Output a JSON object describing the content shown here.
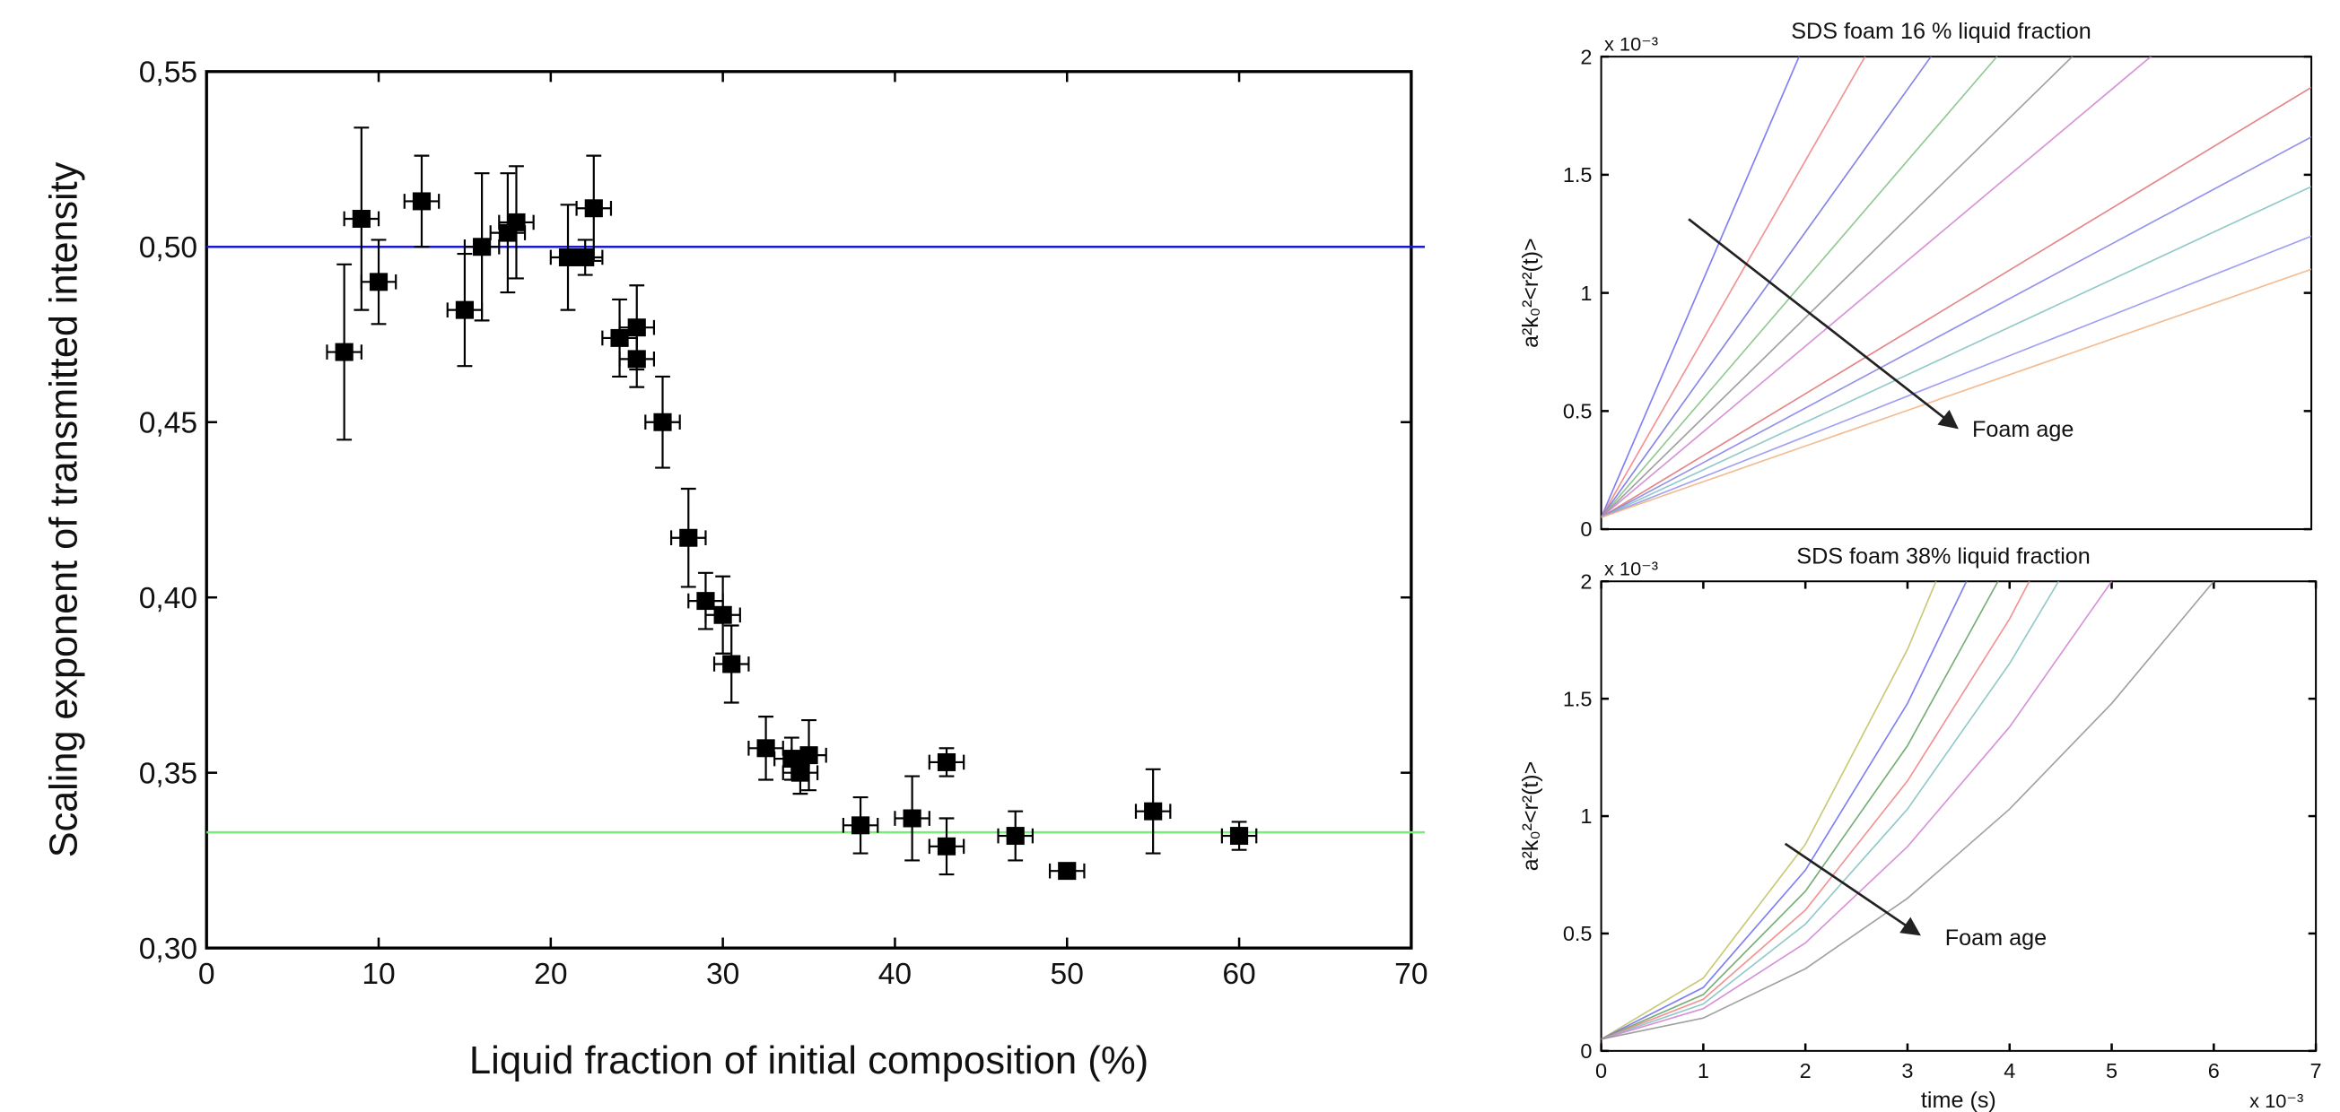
{
  "chart_data": [
    {
      "type": "scatter",
      "xlabel": "Liquid fraction of initial composition (%)",
      "ylabel": "Scaling exponent of transmitted intensity",
      "x": [
        8,
        9,
        10,
        12.5,
        15,
        16,
        17.5,
        18,
        21,
        22,
        22.5,
        24,
        25,
        25,
        26.5,
        28,
        29,
        30,
        30.5,
        32.5,
        34,
        34.5,
        35,
        38,
        41,
        43,
        43,
        47,
        50,
        55,
        60
      ],
      "values": [
        0.47,
        0.508,
        0.49,
        0.513,
        0.482,
        0.5,
        0.504,
        0.507,
        0.497,
        0.497,
        0.511,
        0.474,
        0.477,
        0.468,
        0.45,
        0.417,
        0.399,
        0.395,
        0.381,
        0.357,
        0.354,
        0.35,
        0.355,
        0.335,
        0.337,
        0.353,
        0.329,
        0.332,
        0.322,
        0.339,
        0.332
      ],
      "yerr": [
        0.025,
        0.026,
        0.012,
        0.013,
        0.016,
        0.021,
        0.017,
        0.016,
        0.015,
        0.005,
        0.015,
        0.011,
        0.012,
        0.008,
        0.013,
        0.014,
        0.008,
        0.011,
        0.011,
        0.009,
        0.006,
        0.006,
        0.01,
        0.008,
        0.012,
        0.004,
        0.008,
        0.007,
        0.002,
        0.012,
        0.004
      ],
      "xerr": [
        1,
        1,
        1,
        1,
        1,
        1,
        1,
        1,
        1,
        1,
        1,
        1,
        1,
        1,
        1,
        1,
        1,
        1,
        1,
        1,
        1,
        1,
        1,
        1,
        1,
        1,
        1,
        1,
        1,
        1,
        1
      ],
      "color": "#000000",
      "hlines": [
        {
          "value": 0.5,
          "color": "#1a1acc"
        },
        {
          "value": 0.333,
          "color": "#77ee77"
        }
      ],
      "xlim": [
        0,
        70
      ],
      "xticks": [
        0,
        10,
        20,
        30,
        40,
        50,
        60,
        70
      ],
      "ylim": [
        0.3,
        0.55
      ],
      "yticks": [
        {
          "value": 0.3,
          "label": "0,30"
        },
        {
          "value": 0.35,
          "label": "0,35"
        },
        {
          "value": 0.4,
          "label": "0,40"
        },
        {
          "value": 0.45,
          "label": "0,45"
        },
        {
          "value": 0.5,
          "label": "0,50"
        },
        {
          "value": 0.55,
          "label": "0,55"
        }
      ]
    },
    {
      "type": "line",
      "title": "SDS foam 16 % liquid fraction",
      "ylabel": "a²k₀²<r²(t)>",
      "y_multiplier": "x 10⁻³",
      "annotation": "Foam age",
      "x": [
        0,
        1,
        2,
        3,
        4,
        5,
        6,
        7
      ],
      "series": [
        {
          "color": "#6a6af0",
          "values": [
            0.05,
            1.05,
            2.05,
            null,
            null,
            null,
            null,
            null
          ]
        },
        {
          "color": "#f08080",
          "values": [
            0.05,
            0.8,
            1.55,
            2.3,
            null,
            null,
            null,
            null
          ]
        },
        {
          "color": "#7070e0",
          "values": [
            0.05,
            0.65,
            1.25,
            1.85,
            2.45,
            null,
            null,
            null
          ]
        },
        {
          "color": "#80c080",
          "values": [
            0.05,
            0.55,
            1.05,
            1.55,
            2.05,
            null,
            null,
            null
          ]
        },
        {
          "color": "#909090",
          "values": [
            0.05,
            0.47,
            0.89,
            1.31,
            1.73,
            2.15,
            null,
            null
          ]
        },
        {
          "color": "#d080d0",
          "values": [
            0.05,
            0.41,
            0.77,
            1.13,
            1.49,
            1.85,
            2.21,
            null
          ]
        },
        {
          "color": "#e07070",
          "values": [
            0.05,
            0.31,
            0.57,
            0.83,
            1.09,
            1.35,
            1.61,
            1.87
          ]
        },
        {
          "color": "#8080e8",
          "values": [
            0.05,
            0.28,
            0.51,
            0.74,
            0.97,
            1.2,
            1.43,
            1.66
          ]
        },
        {
          "color": "#80c0c0",
          "values": [
            0.05,
            0.25,
            0.45,
            0.65,
            0.85,
            1.05,
            1.25,
            1.45
          ]
        },
        {
          "color": "#9090f0",
          "values": [
            0.05,
            0.22,
            0.39,
            0.56,
            0.73,
            0.9,
            1.07,
            1.24
          ]
        },
        {
          "color": "#f0b080",
          "values": [
            0.05,
            0.2,
            0.35,
            0.5,
            0.65,
            0.8,
            0.95,
            1.1
          ]
        }
      ],
      "xlim": [
        0,
        7
      ],
      "ylim": [
        0,
        2
      ],
      "yticks": [
        0,
        0.5,
        1,
        1.5,
        2
      ]
    },
    {
      "type": "line",
      "title": "SDS foam 38% liquid fraction",
      "ylabel": "a²k₀²<r²(t)>",
      "xlabel": "time (s)",
      "y_multiplier": "x 10⁻³",
      "x_multiplier": "x 10⁻³",
      "annotation": "Foam age",
      "x": [
        0,
        1,
        2,
        3,
        4,
        5,
        6
      ],
      "series": [
        {
          "color": "#c0c060",
          "values": [
            0.05,
            0.31,
            0.88,
            1.71,
            2.75,
            null,
            null
          ]
        },
        {
          "color": "#6a6af0",
          "values": [
            0.05,
            0.27,
            0.77,
            1.48,
            2.38,
            null,
            null
          ]
        },
        {
          "color": "#60a060",
          "values": [
            0.05,
            0.24,
            0.68,
            1.3,
            2.09,
            null,
            null
          ]
        },
        {
          "color": "#f08080",
          "values": [
            0.05,
            0.22,
            0.6,
            1.15,
            1.84,
            2.67,
            null
          ]
        },
        {
          "color": "#80c0c0",
          "values": [
            0.05,
            0.2,
            0.54,
            1.03,
            1.65,
            2.38,
            null
          ]
        },
        {
          "color": "#d080d0",
          "values": [
            0.05,
            0.18,
            0.46,
            0.87,
            1.38,
            2.0,
            null
          ]
        },
        {
          "color": "#909090",
          "values": [
            0.05,
            0.14,
            0.35,
            0.65,
            1.03,
            1.48,
            2.0
          ]
        }
      ],
      "xlim": [
        0,
        7
      ],
      "xticks": [
        0,
        1,
        2,
        3,
        4,
        5,
        6,
        7
      ],
      "ylim": [
        0,
        2
      ],
      "yticks": [
        0,
        0.5,
        1,
        1.5,
        2
      ]
    }
  ]
}
